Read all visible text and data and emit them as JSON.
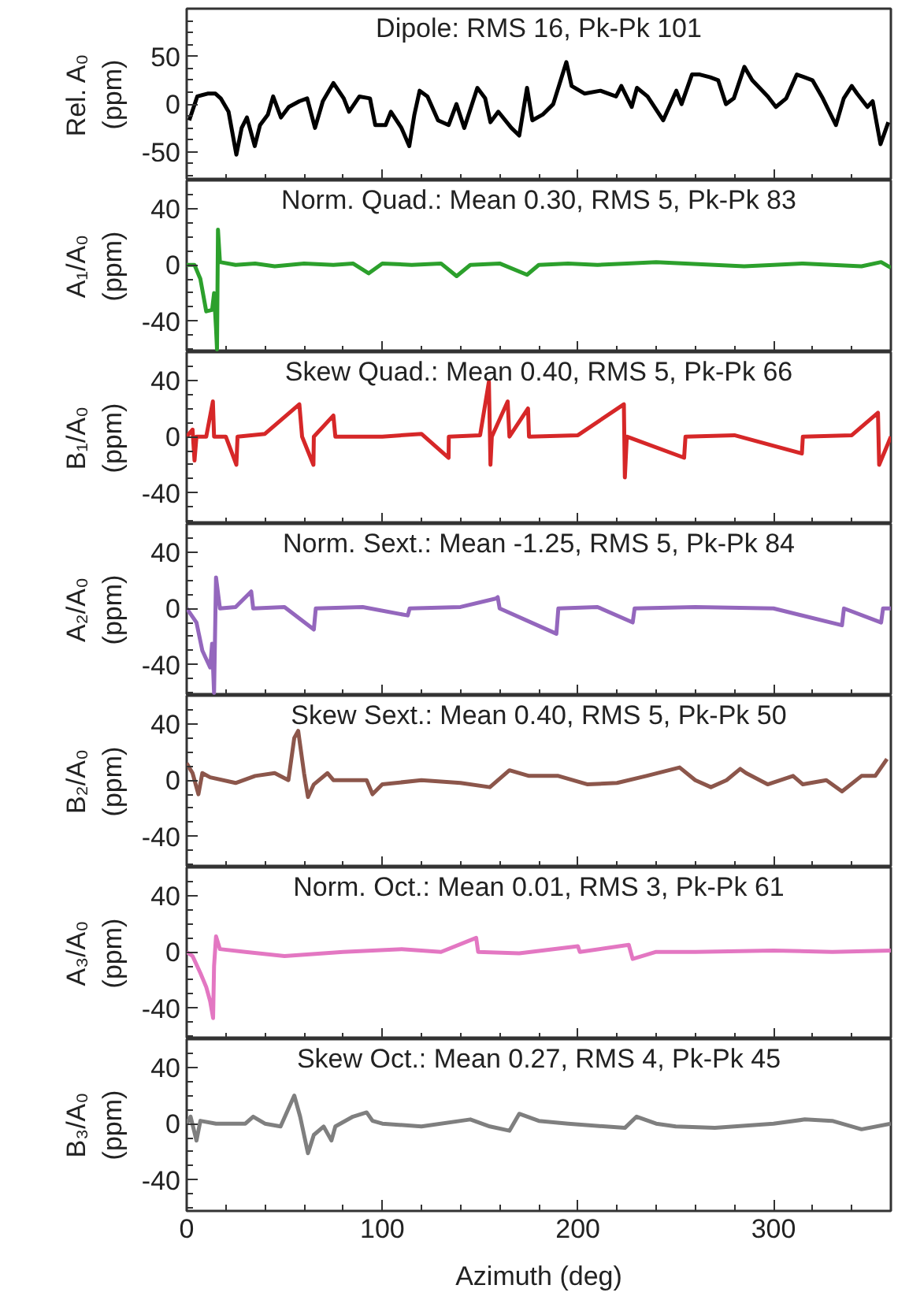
{
  "chart_data": [
    {
      "type": "line",
      "title": "Dipole: RMS 16, Pk-Pk 101",
      "ylabel": "Rel. A₀ (ppm)",
      "xlim": [
        0,
        360
      ],
      "xticks": [
        0,
        100,
        200,
        300
      ],
      "ylim": [
        -80,
        100
      ],
      "yticks": [
        -50,
        0,
        50
      ],
      "tick_labels": "y",
      "marker": "none",
      "series": [
        {
          "color": "#000000",
          "x": [
            1.3,
            5.4,
            10.7,
            14.7,
            17.4,
            21.4,
            25.4,
            28.1,
            30.8,
            34.8,
            37.5,
            41.5,
            44.2,
            48.2,
            52.2,
            57.6,
            61.6,
            65.6,
            69.6,
            75.0,
            80.3,
            83.0,
            88.3,
            93.7,
            96.4,
            101.7,
            104.4,
            109.8,
            113.8,
            116.4,
            119.1,
            123.1,
            128.5,
            133.9,
            137.9,
            141.9,
            148.6,
            152.6,
            155.3,
            159.3,
            166.0,
            170.0,
            174.0,
            176.7,
            182.0,
            187.4,
            194.1,
            196.8,
            203.5,
            211.5,
            219.5,
            222.2,
            227.5,
            230.2,
            235.6,
            243.6,
            250.3,
            253.0,
            258.3,
            262.3,
            267.7,
            271.7,
            275.7,
            279.7,
            285.1,
            289.1,
            297.1,
            301.2,
            306.5,
            311.9,
            315.9,
            319.9,
            325.2,
            331.9,
            335.9,
            340.0,
            342.7,
            348.0,
            350.7,
            354.7,
            358.7
          ],
          "values": [
            -17,
            8,
            11,
            11,
            6,
            -8,
            -53,
            -25,
            -14,
            -44,
            -22,
            -11,
            8,
            -14,
            -3,
            3,
            6,
            -25,
            3,
            22,
            6,
            -8,
            8,
            6,
            -22,
            -22,
            -8,
            -25,
            -44,
            -11,
            14,
            8,
            -17,
            -22,
            0,
            -25,
            17,
            6,
            -19,
            -8,
            -25,
            -33,
            17,
            -17,
            -11,
            0,
            44,
            19,
            11,
            14,
            8,
            19,
            -3,
            17,
            8,
            -17,
            14,
            0,
            31,
            31,
            28,
            25,
            0,
            6,
            39,
            25,
            8,
            -3,
            6,
            31,
            28,
            25,
            6,
            -22,
            6,
            19,
            11,
            -3,
            3,
            -42,
            -19
          ]
        }
      ]
    },
    {
      "type": "line",
      "title": "Norm. Quad.: Mean 0.30, RMS 5, Pk-Pk 83",
      "ylabel": "A₁/A₀ (ppm)",
      "xlim": [
        0,
        360
      ],
      "xticks": [
        0,
        100,
        200,
        300
      ],
      "ylim": [
        -62,
        60
      ],
      "yticks": [
        -40,
        0,
        40
      ],
      "tick_labels": "y",
      "marker": "none",
      "series": [
        {
          "color": "#2ca02c",
          "x": [
            0,
            4,
            7,
            10,
            13,
            14,
            15,
            15.5,
            16,
            17,
            25,
            35,
            45,
            60,
            75,
            85,
            93,
            100,
            115,
            130,
            138,
            145,
            160,
            174,
            180,
            195,
            210,
            225,
            240,
            255,
            270,
            285,
            300,
            315,
            330,
            345,
            355,
            360
          ],
          "values": [
            0,
            0,
            -10,
            -33,
            -32,
            -20,
            -45,
            -60,
            25,
            2,
            0,
            1,
            -1,
            1,
            0,
            1,
            -6,
            1,
            0,
            1,
            -8,
            0,
            1,
            -7,
            0,
            1,
            0,
            1,
            2,
            1,
            0,
            -1,
            0,
            1,
            0,
            -1,
            2,
            -2
          ]
        }
      ]
    },
    {
      "type": "line",
      "title": "Skew Quad.: Mean 0.40, RMS 5, Pk-Pk 66",
      "ylabel": "B₁/A₀ (ppm)",
      "xlim": [
        0,
        360
      ],
      "xticks": [
        0,
        100,
        200,
        300
      ],
      "ylim": [
        -62,
        60
      ],
      "yticks": [
        -40,
        0,
        40
      ],
      "tick_labels": "y",
      "marker": "none",
      "series": [
        {
          "color": "#d62728",
          "x": [
            0,
            3,
            4,
            5,
            10,
            13.4,
            14,
            20,
            25.4,
            26,
            40,
            57.6,
            59,
            64.8,
            65,
            75,
            76,
            100,
            120,
            133.9,
            134,
            150,
            154.5,
            155.3,
            156,
            164.1,
            165,
            174.5,
            175,
            200,
            223.5,
            224,
            225,
            254.3,
            255,
            280,
            314.5,
            315,
            340,
            353.4,
            354,
            360
          ],
          "values": [
            0,
            5,
            -17,
            0,
            0,
            25,
            0,
            0,
            -20,
            0,
            2,
            23,
            0,
            -20,
            0,
            15,
            0,
            0,
            2,
            -15,
            0,
            1,
            39,
            -20,
            0,
            25,
            0,
            20,
            0,
            1,
            23,
            -29,
            0,
            -15,
            0,
            1,
            -12,
            0,
            1,
            17,
            -20,
            0
          ]
        }
      ]
    },
    {
      "type": "line",
      "title": "Norm. Sext.: Mean -1.25, RMS 5, Pk-Pk 84",
      "ylabel": "A₂/A₀ (ppm)",
      "xlim": [
        0,
        360
      ],
      "xticks": [
        0,
        100,
        200,
        300
      ],
      "ylim": [
        -62,
        60
      ],
      "yticks": [
        -40,
        0,
        40
      ],
      "tick_labels": "y",
      "marker": "none",
      "series": [
        {
          "color": "#9467bd",
          "x": [
            0,
            5,
            8,
            12,
            13,
            14,
            15,
            17,
            25,
            33,
            34,
            50,
            65,
            66,
            90,
            113,
            114,
            140,
            158,
            159,
            160,
            189,
            190,
            210,
            228,
            229,
            260,
            300,
            335,
            336,
            355,
            356,
            360
          ],
          "values": [
            0,
            -10,
            -30,
            -42,
            -25,
            -60,
            22,
            0,
            1,
            12,
            0,
            1,
            -15,
            0,
            1,
            -5,
            0,
            1,
            7,
            8,
            0,
            -18,
            0,
            1,
            -10,
            0,
            1,
            0,
            -12,
            0,
            -10,
            0,
            0
          ]
        }
      ]
    },
    {
      "type": "line",
      "title": "Skew Sext.: Mean 0.40, RMS 5, Pk-Pk 50",
      "ylabel": "B₂/A₀ (ppm)",
      "xlim": [
        0,
        360
      ],
      "xticks": [
        0,
        100,
        200,
        300
      ],
      "ylim": [
        -62,
        60
      ],
      "yticks": [
        -40,
        0,
        40
      ],
      "tick_labels": "y",
      "marker": "none",
      "series": [
        {
          "color": "#8c564b",
          "x": [
            0,
            3,
            6,
            8,
            12,
            25,
            35,
            45,
            52,
            55,
            57,
            60,
            62,
            65,
            72,
            75,
            92,
            95,
            100,
            120,
            140,
            155,
            165,
            175,
            190,
            205,
            220,
            235,
            252,
            260,
            268,
            276,
            283,
            286,
            297,
            310,
            315,
            327,
            335,
            345,
            352,
            358
          ],
          "values": [
            12,
            5,
            -10,
            5,
            2,
            -2,
            3,
            5,
            0,
            30,
            35,
            5,
            -12,
            -3,
            5,
            0,
            0,
            -10,
            -3,
            0,
            -2,
            -5,
            7,
            3,
            3,
            -3,
            -2,
            3,
            9,
            0,
            -5,
            0,
            8,
            5,
            -3,
            3,
            -3,
            0,
            -8,
            3,
            3,
            15
          ]
        }
      ]
    },
    {
      "type": "line",
      "title": "Norm. Oct.: Mean 0.01, RMS 3, Pk-Pk 61",
      "ylabel": "A₃/A₀ (ppm)",
      "xlim": [
        0,
        360
      ],
      "xticks": [
        0,
        100,
        200,
        300
      ],
      "ylim": [
        -62,
        60
      ],
      "yticks": [
        -40,
        0,
        40
      ],
      "tick_labels": "y",
      "marker": "none",
      "series": [
        {
          "color": "#e377c2",
          "x": [
            0,
            3,
            7,
            10,
            12,
            13.5,
            14,
            15,
            17,
            30,
            50,
            80,
            110,
            130,
            148,
            149,
            170,
            200,
            201,
            226,
            227,
            228,
            240,
            260,
            300,
            330,
            360
          ],
          "values": [
            0,
            -3,
            -15,
            -25,
            -35,
            -47,
            -10,
            11,
            2,
            0,
            -3,
            0,
            2,
            0,
            10,
            0,
            -1,
            4,
            0,
            5,
            0,
            -5,
            0,
            0,
            1,
            0,
            1
          ]
        }
      ]
    },
    {
      "type": "line",
      "title": "Skew Oct.: Mean 0.27, RMS 4, Pk-Pk 45",
      "ylabel": "B₃/A₀ (ppm)",
      "xlabel": "Azimuth (deg)",
      "xlim": [
        0,
        360
      ],
      "xticks": [
        0,
        100,
        200,
        300
      ],
      "ylim": [
        -62,
        60
      ],
      "yticks": [
        -40,
        0,
        40
      ],
      "marker": "none",
      "series": [
        {
          "color": "#7f7f7f",
          "x": [
            0,
            2,
            5,
            7,
            15,
            30,
            34,
            40,
            48,
            55,
            58,
            62,
            65,
            70,
            74,
            76,
            85,
            92,
            95,
            100,
            120,
            145,
            155,
            165,
            170,
            180,
            195,
            224,
            230,
            240,
            250,
            270,
            300,
            316,
            330,
            345,
            360
          ],
          "values": [
            0,
            5,
            -12,
            2,
            0,
            0,
            5,
            0,
            -2,
            20,
            5,
            -21,
            -8,
            -2,
            -12,
            -2,
            5,
            8,
            2,
            0,
            -2,
            3,
            -2,
            -5,
            7,
            2,
            0,
            -3,
            5,
            0,
            -2,
            -3,
            0,
            3,
            2,
            -4,
            0
          ]
        }
      ]
    }
  ]
}
